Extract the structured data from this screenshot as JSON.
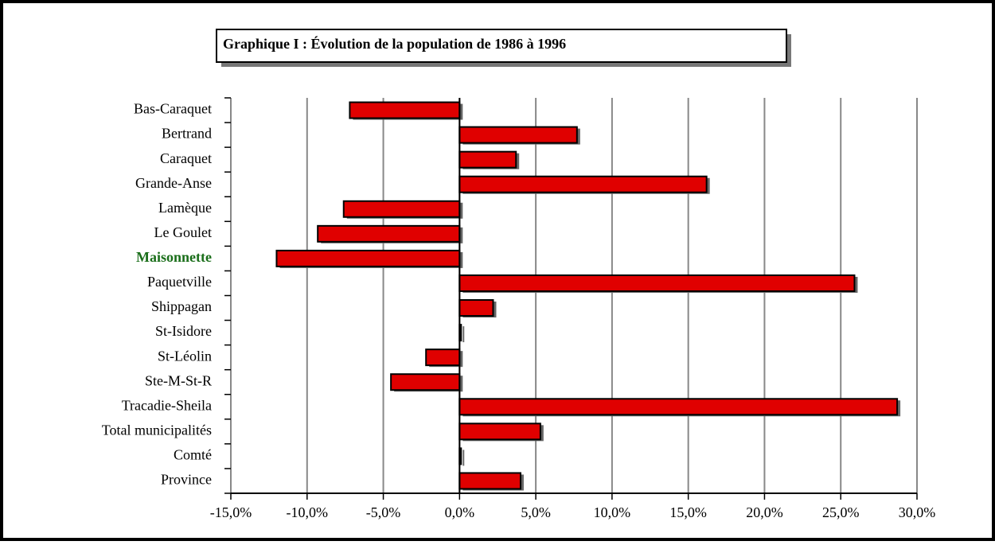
{
  "chart_data": {
    "type": "hbar",
    "title": "Graphique I : Évolution de la population de 1986 à 1996",
    "categories": [
      "Bas-Caraquet",
      "Bertrand",
      "Caraquet",
      "Grande-Anse",
      "Lamèque",
      "Le Goulet",
      "Maisonnette",
      "Paquetville",
      "Shippagan",
      "St-Isidore",
      "St-Léolin",
      "Ste-M-St-R",
      "Tracadie-Sheila",
      "Total municipalités",
      "Comté",
      "Province"
    ],
    "values": [
      -7.2,
      7.7,
      3.7,
      16.2,
      -7.6,
      -9.3,
      -12.0,
      25.9,
      2.2,
      0.1,
      -2.2,
      -4.5,
      28.7,
      5.3,
      0.1,
      4.0
    ],
    "color": "#e00000",
    "highlight": {
      "category": "Maisonnette",
      "color": "#1a6e1a"
    },
    "xlim": [
      -15,
      30
    ],
    "xticks": [
      {
        "value": -15,
        "label": "-15,0%"
      },
      {
        "value": -10,
        "label": "-10,0%"
      },
      {
        "value": -5,
        "label": "-5,0%"
      },
      {
        "value": 0,
        "label": "0,0%"
      },
      {
        "value": 5,
        "label": "5,0%"
      },
      {
        "value": 10,
        "label": "10,0%"
      },
      {
        "value": 15,
        "label": "15,0%"
      },
      {
        "value": 20,
        "label": "20,0%"
      },
      {
        "value": 25,
        "label": "25,0%"
      },
      {
        "value": 30,
        "label": "30,0%"
      }
    ],
    "grid": true
  }
}
